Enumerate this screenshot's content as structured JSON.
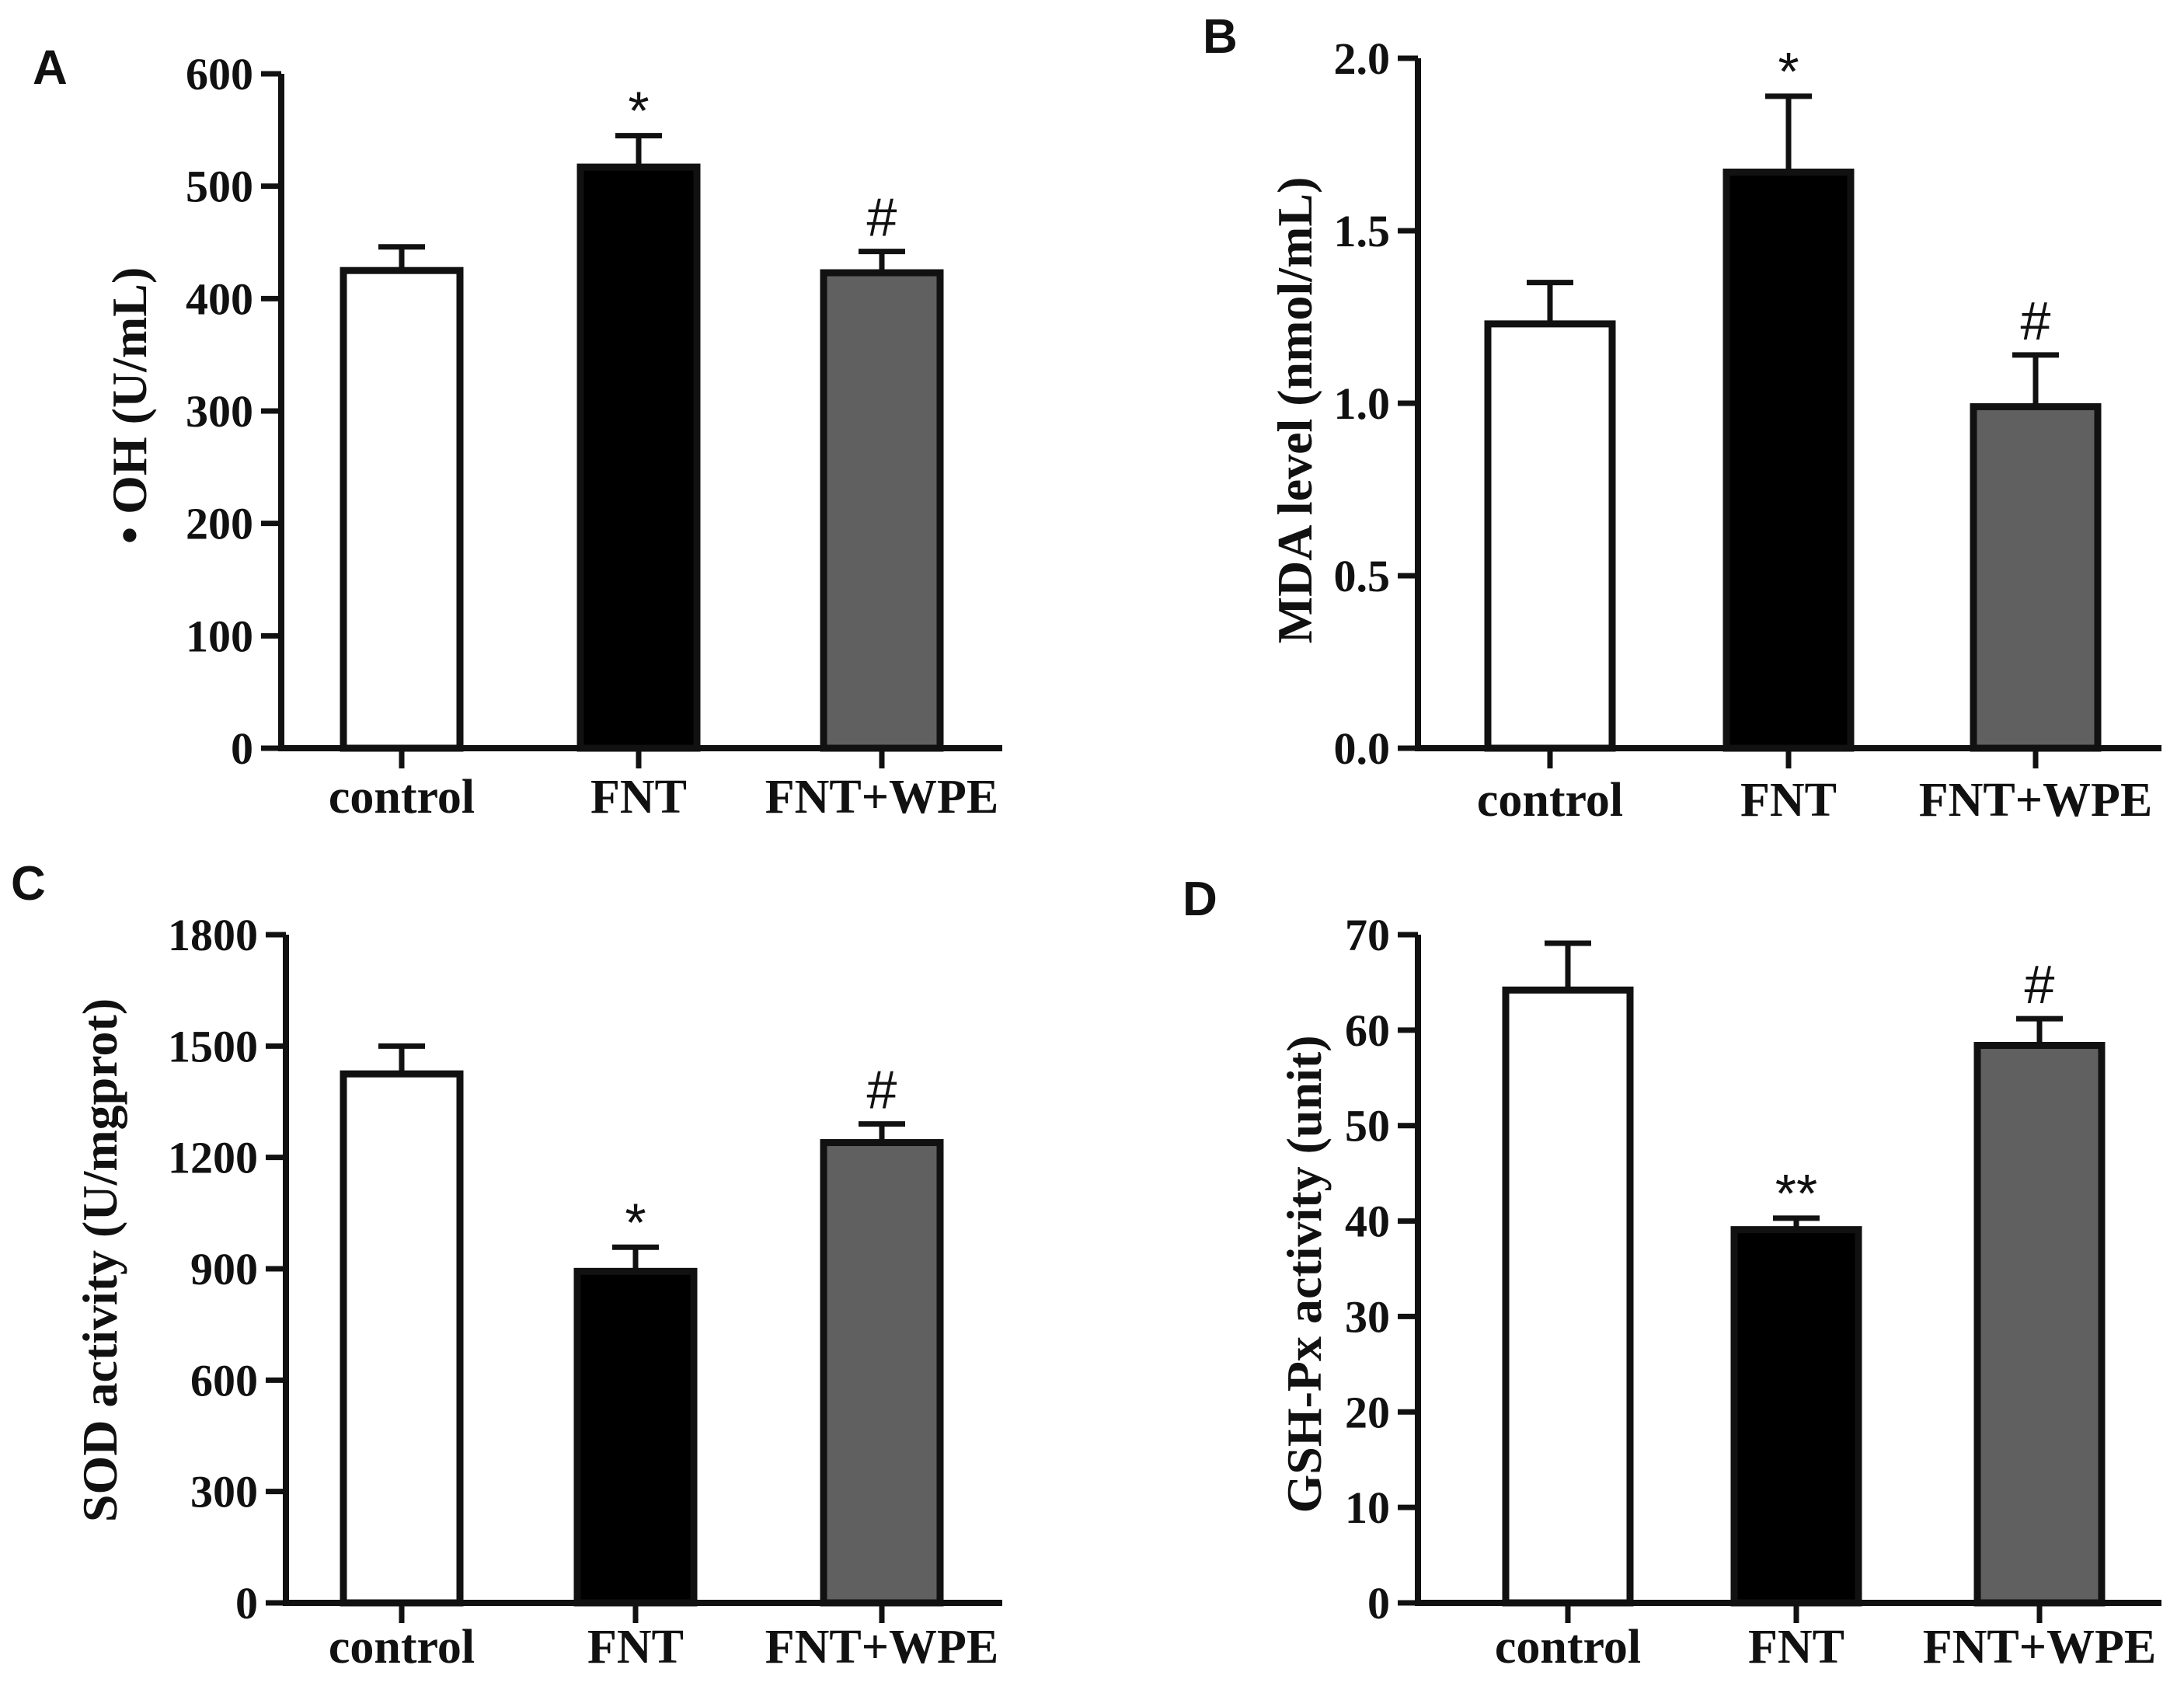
{
  "chart_data": [
    {
      "panel": "A",
      "type": "bar",
      "categories": [
        "control",
        "FNT",
        "FNT+WPE"
      ],
      "values": [
        425,
        517,
        423
      ],
      "errors": [
        21,
        28,
        19
      ],
      "significance": [
        "",
        "*",
        "#"
      ],
      "fills": [
        "#ffffff",
        "#000000",
        "#606060"
      ],
      "ylabel": "• OH (U/mL)",
      "ylim": [
        0,
        600
      ],
      "yticks": [
        0,
        100,
        200,
        300,
        400,
        500,
        600
      ],
      "ytick_labels": [
        "0",
        "100",
        "200",
        "300",
        "400",
        "500",
        "600"
      ]
    },
    {
      "panel": "B",
      "type": "bar",
      "categories": [
        "control",
        "FNT",
        "FNT+WPE"
      ],
      "values": [
        1.23,
        1.67,
        0.99
      ],
      "errors": [
        0.12,
        0.22,
        0.15
      ],
      "significance": [
        "",
        "*",
        "#"
      ],
      "fills": [
        "#ffffff",
        "#000000",
        "#606060"
      ],
      "ylabel": "MDA level (nmol/mL)",
      "ylim": [
        0,
        2.0
      ],
      "yticks": [
        0,
        0.5,
        1.0,
        1.5,
        2.0
      ],
      "ytick_labels": [
        "0.0",
        "0.5",
        "1.0",
        "1.5",
        "2.0"
      ]
    },
    {
      "panel": "C",
      "type": "bar",
      "categories": [
        "control",
        "FNT",
        "FNT+WPE"
      ],
      "values": [
        1425,
        893,
        1240
      ],
      "errors": [
        75,
        65,
        50
      ],
      "significance": [
        "",
        "*",
        "#"
      ],
      "fills": [
        "#ffffff",
        "#000000",
        "#606060"
      ],
      "ylabel": "SOD activity (U/mgprot)",
      "ylim": [
        0,
        1800
      ],
      "yticks": [
        0,
        300,
        600,
        900,
        1200,
        1500,
        1800
      ],
      "ytick_labels": [
        "0",
        "300",
        "600",
        "900",
        "1200",
        "1500",
        "1800"
      ]
    },
    {
      "panel": "D",
      "type": "bar",
      "categories": [
        "control",
        "FNT",
        "FNT+WPE"
      ],
      "values": [
        64.2,
        39.1,
        58.4
      ],
      "errors": [
        4.9,
        1.2,
        2.8
      ],
      "significance": [
        "",
        "**",
        "#"
      ],
      "fills": [
        "#ffffff",
        "#000000",
        "#606060"
      ],
      "ylabel": "GSH-Px activity (unit)",
      "ylim": [
        0,
        70
      ],
      "yticks": [
        0,
        10,
        20,
        30,
        40,
        50,
        60,
        70
      ],
      "ytick_labels": [
        "0",
        "10",
        "20",
        "30",
        "40",
        "50",
        "60",
        "70"
      ]
    }
  ]
}
